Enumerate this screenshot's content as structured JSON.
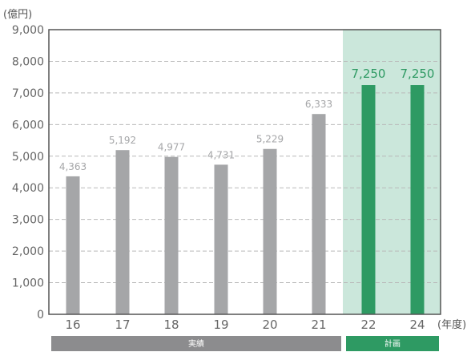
{
  "chart_data": {
    "type": "bar",
    "unit_label": "(億円)",
    "xlabel_suffix": "(年度)",
    "categories": [
      "16",
      "17",
      "18",
      "19",
      "20",
      "21",
      "22",
      "24"
    ],
    "series": [
      {
        "values": [
          4363,
          5192,
          4977,
          4731,
          5229,
          6333,
          7250,
          7250
        ]
      }
    ],
    "value_labels": [
      "4,363",
      "5,192",
      "4,977",
      "4,731",
      "5,229",
      "6,333",
      "7,250",
      "7,250"
    ],
    "ylim": [
      0,
      9000
    ],
    "yticks": [
      0,
      1000,
      2000,
      3000,
      4000,
      5000,
      6000,
      7000,
      8000,
      9000
    ],
    "ytick_labels": [
      "0",
      "1,000",
      "2,000",
      "3,000",
      "4,000",
      "5,000",
      "6,000",
      "7,000",
      "8,000",
      "9,000"
    ],
    "grid": true,
    "periods": [
      {
        "label": "実績",
        "categories": [
          "16",
          "17",
          "18",
          "19",
          "20",
          "21"
        ]
      },
      {
        "label": "計画",
        "categories": [
          "22",
          "24"
        ]
      }
    ],
    "colors": {
      "actual_bar": "#a5a6a8",
      "plan_bar": "#2e9a63",
      "plan_background": "#cbe7db",
      "actual_band": "#8c8c8e",
      "plan_band": "#2e9a63"
    }
  }
}
